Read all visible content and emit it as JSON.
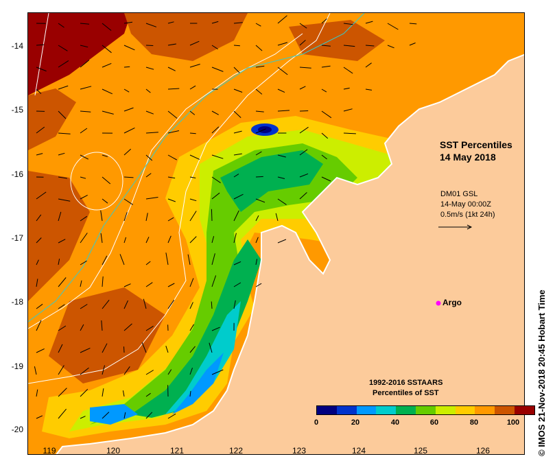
{
  "title": {
    "line1": "SST Percentiles",
    "line2": "14 May 2018"
  },
  "current_info": {
    "line1": "DM01 GSL",
    "line2": "14-May 00:00Z",
    "line3": "0.5m/s (1kt 24h)"
  },
  "argo_label": "Argo",
  "legend": {
    "title1": "1992-2016 SSTAARS",
    "title2": "Percentiles of SST",
    "colors": [
      "#000080",
      "#0033cc",
      "#0099ff",
      "#00cccc",
      "#00b050",
      "#66cc00",
      "#ccee00",
      "#ffcc00",
      "#ff9900",
      "#cc5500",
      "#990000"
    ],
    "tick_labels": [
      "0",
      "20",
      "40",
      "60",
      "80",
      "100"
    ]
  },
  "axes": {
    "x_ticks": [
      "119",
      "120",
      "121",
      "122",
      "123",
      "124",
      "125",
      "126"
    ],
    "y_ticks": [
      "-14",
      "-15",
      "-16",
      "-17",
      "-18",
      "-19",
      "-20"
    ]
  },
  "credit": "© IMOS 21-Nov-2018 20:45 Hobart Time",
  "colors": {
    "land": "#fccb9b",
    "coast": "#ffffff",
    "argo": "#ff00ff"
  }
}
